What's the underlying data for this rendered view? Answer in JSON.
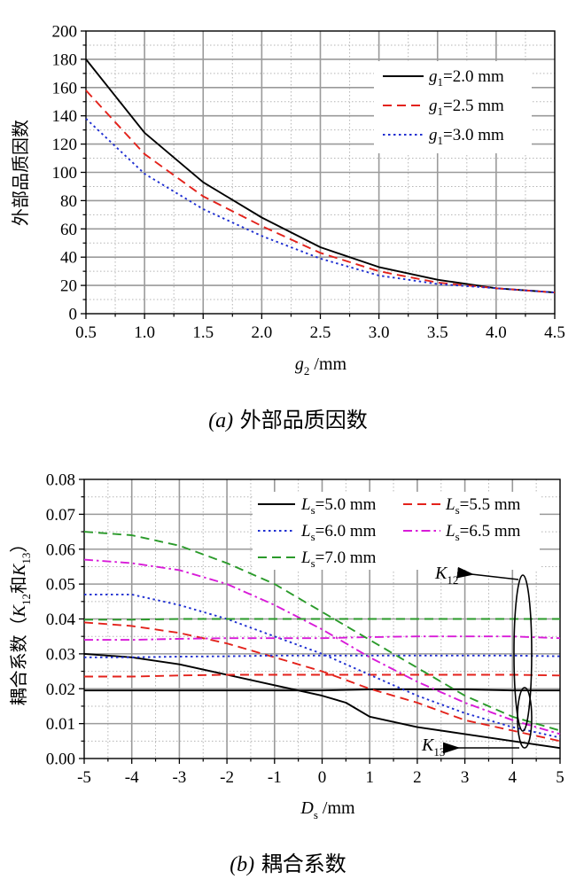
{
  "chart_data": [
    {
      "type": "line",
      "xlabel_var": "g",
      "xlabel_sub": "2",
      "xlabel_unit": " /mm",
      "ylabel": "外部品质因数",
      "xlim": [
        0.5,
        4.5
      ],
      "ylim": [
        0,
        200
      ],
      "xticks": [
        "0.5",
        "1.0",
        "1.5",
        "2.0",
        "2.5",
        "3.0",
        "3.5",
        "4.0",
        "4.5"
      ],
      "yticks": [
        "0",
        "20",
        "40",
        "60",
        "80",
        "100",
        "120",
        "140",
        "160",
        "180",
        "200"
      ],
      "grid": true,
      "legend_position": "top-right",
      "series": [
        {
          "name_var": "g",
          "name_sub": "1",
          "name_rest": "=2.0 mm",
          "color": "#000000",
          "dash": "solid",
          "x": [
            0.5,
            1.0,
            1.5,
            2.0,
            2.5,
            3.0,
            3.5,
            4.0,
            4.5
          ],
          "y": [
            180,
            128,
            93,
            68,
            47,
            33,
            24,
            18,
            15
          ]
        },
        {
          "name_var": "g",
          "name_sub": "1",
          "name_rest": "=2.5 mm",
          "color": "#e3221b",
          "dash": "dashed",
          "x": [
            0.5,
            1.0,
            1.5,
            2.0,
            2.5,
            3.0,
            3.5,
            4.0,
            4.5
          ],
          "y": [
            158,
            113,
            83,
            62,
            43,
            30,
            22,
            18,
            15
          ]
        },
        {
          "name_var": "g",
          "name_sub": "1",
          "name_rest": "=3.0 mm",
          "color": "#1f2fd1",
          "dash": "dotted",
          "x": [
            0.5,
            1.0,
            1.5,
            2.0,
            2.5,
            3.0,
            3.5,
            4.0,
            4.5
          ],
          "y": [
            138,
            99,
            74,
            55,
            39,
            27,
            21,
            18,
            15
          ]
        }
      ],
      "caption_label": "(a)",
      "caption_text": "外部品质因数"
    },
    {
      "type": "line",
      "xlabel_var": "D",
      "xlabel_sub": "s",
      "xlabel_unit": " /mm",
      "ylabel_main": "耦合系数（",
      "ylabel_k1": "K",
      "ylabel_k1_sub": "12",
      "ylabel_and": "和",
      "ylabel_k2": "K",
      "ylabel_k2_sub": "13",
      "ylabel_end": "）",
      "xlim": [
        -5,
        5
      ],
      "ylim": [
        0,
        0.08
      ],
      "xticks": [
        "-5",
        "-4",
        "-3",
        "-2",
        "-1",
        "0",
        "1",
        "2",
        "3",
        "4",
        "5"
      ],
      "yticks": [
        "0.00",
        "0.01",
        "0.02",
        "0.03",
        "0.04",
        "0.05",
        "0.06",
        "0.07",
        "0.08"
      ],
      "grid": true,
      "legend_position": "top-right",
      "series": [
        {
          "name_var": "L",
          "name_sub": "s",
          "name_rest": "=5.0 mm",
          "color": "#000000",
          "dash": "solid",
          "k12": {
            "x": [
              -5,
              -4,
              -3,
              -2,
              -1,
              0,
              1,
              2,
              3,
              4,
              5
            ],
            "y": [
              0.0195,
              0.0195,
              0.0195,
              0.0195,
              0.0195,
              0.0195,
              0.0198,
              0.0198,
              0.0198,
              0.0195,
              0.0195
            ]
          },
          "k13": {
            "x": [
              -5,
              -4,
              -3,
              -2,
              -1,
              0,
              0.5,
              1,
              2,
              3,
              4,
              5
            ],
            "y": [
              0.03,
              0.029,
              0.027,
              0.024,
              0.021,
              0.018,
              0.016,
              0.012,
              0.009,
              0.007,
              0.005,
              0.003
            ]
          }
        },
        {
          "name_var": "L",
          "name_sub": "s",
          "name_rest": "=5.5 mm",
          "color": "#e3221b",
          "dash": "dashed",
          "k12": {
            "x": [
              -5,
              -4,
              -3,
              -2,
              -1,
              0,
              1,
              2,
              3,
              4,
              5
            ],
            "y": [
              0.0235,
              0.0235,
              0.0238,
              0.024,
              0.024,
              0.024,
              0.024,
              0.024,
              0.024,
              0.024,
              0.0238
            ]
          },
          "k13": {
            "x": [
              -5,
              -4,
              -3,
              -2,
              -1,
              0,
              1,
              2,
              3,
              4,
              5
            ],
            "y": [
              0.039,
              0.038,
              0.036,
              0.033,
              0.029,
              0.025,
              0.02,
              0.016,
              0.011,
              0.008,
              0.005
            ]
          }
        },
        {
          "name_var": "L",
          "name_sub": "s",
          "name_rest": "=6.0 mm",
          "color": "#1f2fd1",
          "dash": "dotted",
          "k12": {
            "x": [
              -5,
              -4,
              -3,
              -2,
              -1,
              0,
              1,
              2,
              3,
              4,
              5
            ],
            "y": [
              0.029,
              0.029,
              0.0292,
              0.0293,
              0.0295,
              0.0295,
              0.0295,
              0.0295,
              0.0295,
              0.0295,
              0.0293
            ]
          },
          "k13": {
            "x": [
              -5,
              -4,
              -3,
              -2,
              -1,
              0,
              1,
              2,
              3,
              4,
              5
            ],
            "y": [
              0.047,
              0.047,
              0.044,
              0.04,
              0.035,
              0.03,
              0.024,
              0.018,
              0.013,
              0.009,
              0.006
            ]
          }
        },
        {
          "name_var": "L",
          "name_sub": "s",
          "name_rest": "=6.5 mm",
          "color": "#d81bd8",
          "dash": "dashdot",
          "k12": {
            "x": [
              -5,
              -4,
              -3,
              -2,
              -1,
              0,
              1,
              2,
              3,
              4,
              5
            ],
            "y": [
              0.034,
              0.034,
              0.0343,
              0.0345,
              0.0345,
              0.0345,
              0.0348,
              0.035,
              0.035,
              0.035,
              0.0345
            ]
          },
          "k13": {
            "x": [
              -5,
              -4,
              -3,
              -2,
              -1,
              0,
              1,
              2,
              3,
              4,
              5
            ],
            "y": [
              0.057,
              0.056,
              0.054,
              0.05,
              0.044,
              0.037,
              0.029,
              0.022,
              0.016,
              0.011,
              0.007
            ]
          }
        },
        {
          "name_var": "L",
          "name_sub": "s",
          "name_rest": "=7.0 mm",
          "color": "#2a9a2a",
          "dash": "dashed",
          "k12": {
            "x": [
              -5,
              -4,
              -3,
              -2,
              -1,
              0,
              1,
              2,
              3,
              4,
              5
            ],
            "y": [
              0.0398,
              0.0398,
              0.04,
              0.04,
              0.04,
              0.04,
              0.04,
              0.04,
              0.04,
              0.04,
              0.04
            ]
          },
          "k13": {
            "x": [
              -5,
              -4,
              -3,
              -2,
              -1,
              0,
              1,
              2,
              3,
              4,
              5
            ],
            "y": [
              0.065,
              0.064,
              0.061,
              0.056,
              0.05,
              0.042,
              0.034,
              0.026,
              0.018,
              0.012,
              0.008
            ]
          }
        }
      ],
      "annotations": [
        {
          "var": "K",
          "sub": "12"
        },
        {
          "var": "K",
          "sub": "13"
        }
      ],
      "caption_label": "(b)",
      "caption_text": "耦合系数"
    }
  ]
}
